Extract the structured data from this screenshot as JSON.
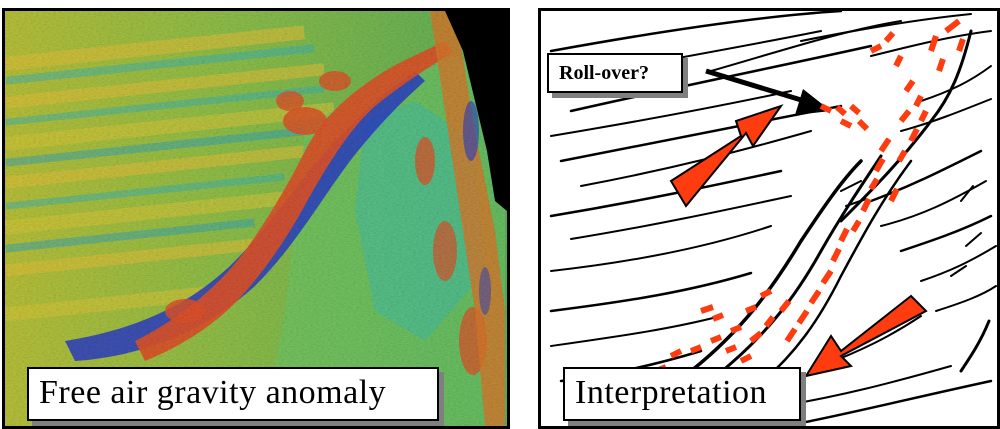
{
  "panels": {
    "left": {
      "caption": "Free air gravity anomaly"
    },
    "right": {
      "caption": "Interpretation",
      "annotation": "Roll-over?"
    }
  },
  "colors": {
    "low": "#2b3ec8",
    "mid_low": "#2fb6c0",
    "mid": "#6fb84a",
    "mid_high": "#d2c63a",
    "high": "#e0542a",
    "fault": "#000000",
    "anomaly_trace": "#ff3b10"
  }
}
